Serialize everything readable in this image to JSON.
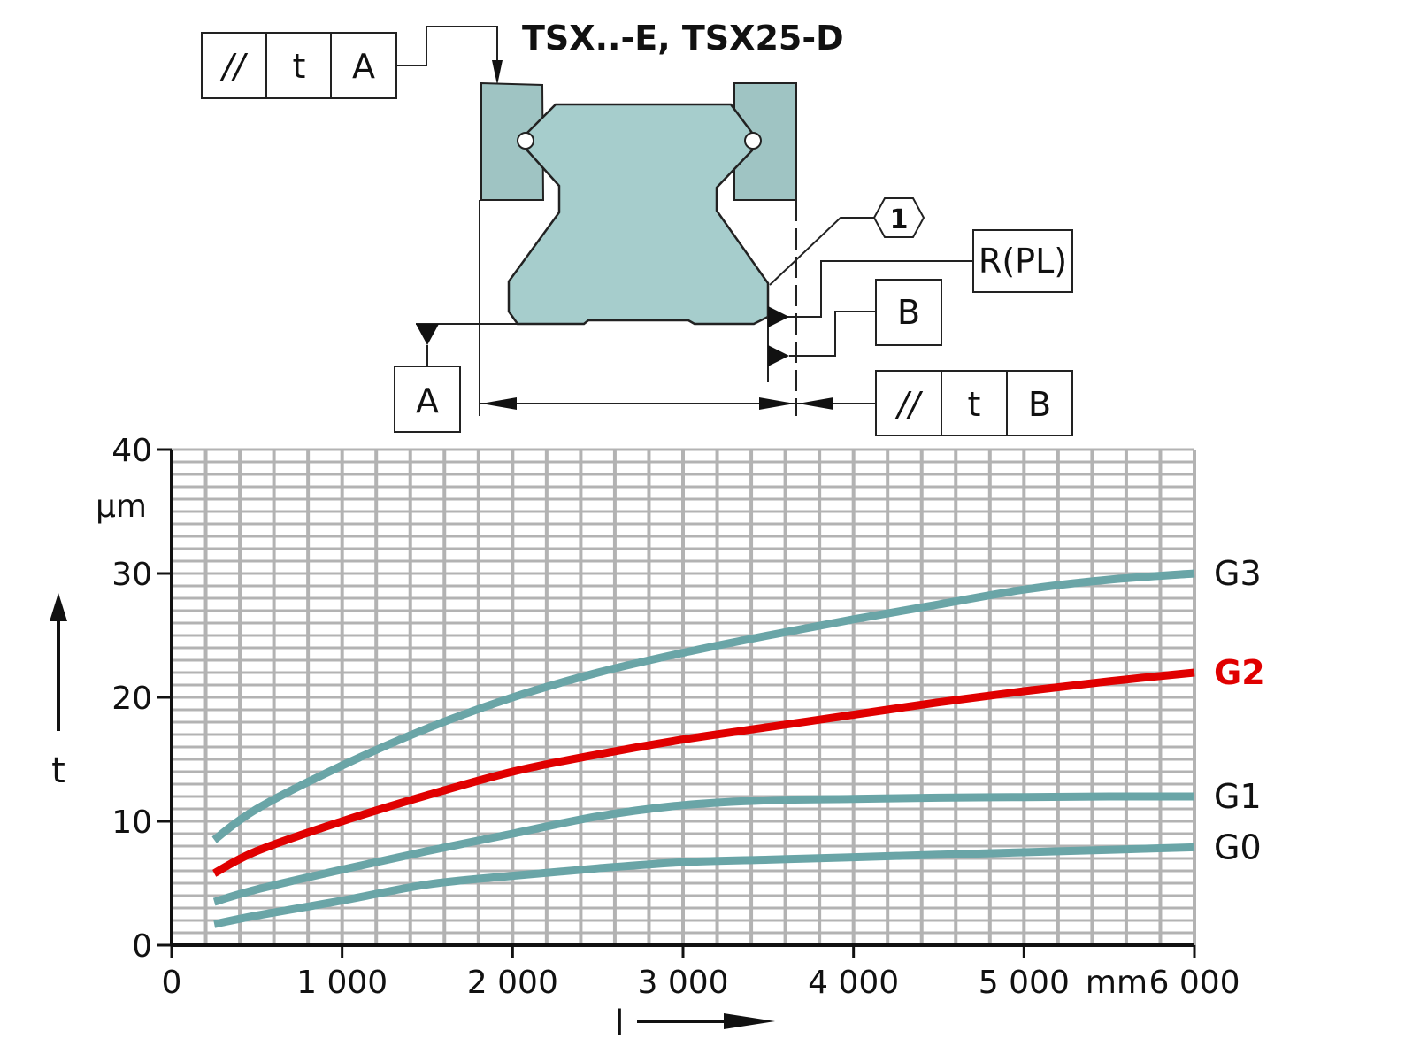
{
  "diagram": {
    "title": "TSX..-E, TSX25-D",
    "frame_top": {
      "sym": "//",
      "t": "t",
      "ref": "A"
    },
    "frame_bottom": {
      "sym": "//",
      "t": "t",
      "ref": "B"
    },
    "datum_a": "A",
    "datum_b": "B",
    "callout": "1",
    "rpl": "R(PL)",
    "colors": {
      "body": "#a6cdcc",
      "block": "#9fc4c3",
      "outline": "#222222"
    }
  },
  "chart_data": {
    "type": "line",
    "xlabel": "l",
    "ylabel": "t",
    "x_unit": "mm",
    "y_unit": "µm",
    "xlim": [
      0,
      6000
    ],
    "ylim": [
      0,
      40
    ],
    "x_ticks": [
      0,
      1000,
      2000,
      3000,
      4000,
      5000,
      6000
    ],
    "x_tick_labels": [
      "0",
      "1 000",
      "2 000",
      "3 000",
      "4 000",
      "5 000",
      "6 000"
    ],
    "y_ticks": [
      0,
      10,
      20,
      30,
      40
    ],
    "y_tick_labels": [
      "0",
      "10",
      "20",
      "30",
      "40"
    ],
    "grid": true,
    "colors": {
      "grid": "#b3b3b3",
      "teal": "#6aa5a7",
      "red": "#e00000"
    },
    "series": [
      {
        "name": "G3",
        "color": "#6aa5a7",
        "bold": false,
        "x": [
          250,
          500,
          1000,
          1500,
          2000,
          2500,
          3000,
          3500,
          4000,
          4500,
          5000,
          5500,
          6000
        ],
        "y": [
          8.5,
          11,
          14.5,
          17.5,
          20,
          22,
          23.6,
          25,
          26.3,
          27.5,
          28.7,
          29.5,
          30
        ]
      },
      {
        "name": "G2",
        "color": "#e00000",
        "bold": true,
        "x": [
          250,
          500,
          1000,
          1500,
          2000,
          2500,
          3000,
          3500,
          4000,
          4500,
          5000,
          5500,
          6000
        ],
        "y": [
          5.8,
          7.6,
          10,
          12.1,
          14,
          15.4,
          16.6,
          17.6,
          18.6,
          19.6,
          20.5,
          21.3,
          22
        ]
      },
      {
        "name": "G1",
        "color": "#6aa5a7",
        "bold": false,
        "x": [
          250,
          500,
          1000,
          1500,
          2000,
          2500,
          3000,
          3500,
          4000,
          4500,
          5000,
          5500,
          6000
        ],
        "y": [
          3.5,
          4.5,
          6.1,
          7.6,
          9,
          10.4,
          11.3,
          11.7,
          11.8,
          11.9,
          11.95,
          12,
          12
        ]
      },
      {
        "name": "G0",
        "color": "#6aa5a7",
        "bold": false,
        "x": [
          250,
          500,
          1000,
          1500,
          2000,
          2500,
          3000,
          3500,
          4000,
          4500,
          5000,
          5500,
          6000
        ],
        "y": [
          1.7,
          2.4,
          3.6,
          4.9,
          5.6,
          6.2,
          6.7,
          6.9,
          7.1,
          7.3,
          7.5,
          7.7,
          7.9
        ]
      }
    ]
  }
}
